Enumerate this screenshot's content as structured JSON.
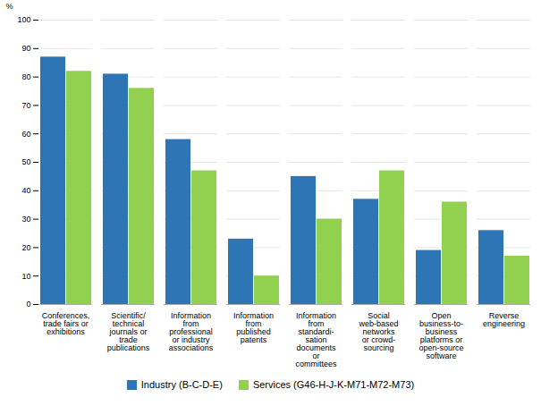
{
  "chart_data": {
    "type": "bar",
    "categories": [
      "Conferences,\ntrade fairs or\nexhibitions",
      "Scientific/\ntechnical\njournals or\ntrade\npublications",
      "Information\nfrom\nprofessional\nor industry\nassociations",
      "Information\nfrom\npublished\npatents",
      "Information\nfrom\nstandardi-\nsation\ndocuments\nor\ncommittees",
      "Social\nweb-based\nnetworks\nor crowd-\nsourcing",
      "Open\nbusiness-to-\nbusiness\nplatforms or\nopen-source\nsoftware",
      "Reverse\nengineering"
    ],
    "series": [
      {
        "name": "Industry (B-C-D-E)",
        "color": "#2E75B6",
        "values": [
          87,
          81,
          58,
          23,
          45,
          37,
          19,
          26
        ]
      },
      {
        "name": "Services (G46-H-J-K-M71-M72-M73)",
        "color": "#92D050",
        "values": [
          82,
          76,
          47,
          10,
          30,
          47,
          36,
          17
        ]
      }
    ],
    "ylabel": "%",
    "ylim": [
      0,
      100
    ],
    "yticks": [
      0,
      10,
      20,
      30,
      40,
      50,
      60,
      70,
      80,
      90,
      100
    ],
    "grid": true,
    "legend": "bottom"
  }
}
